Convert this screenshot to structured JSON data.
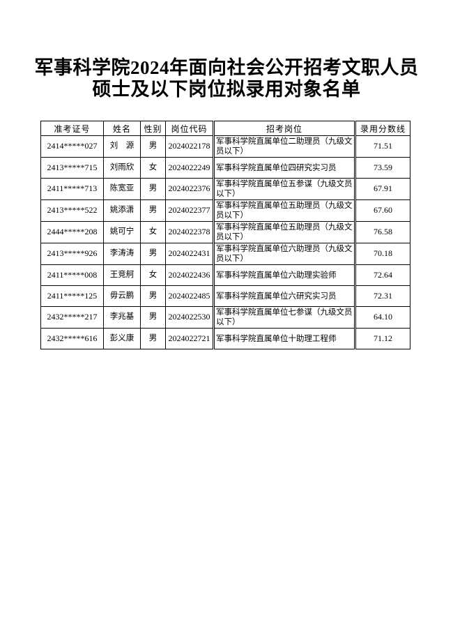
{
  "page": {
    "background_color": "#ffffff",
    "text_color": "#000000",
    "border_color": "#000000"
  },
  "title": {
    "line1": "军事科学院2024年面向社会公开招考文职人员",
    "line2": "硕士及以下岗位拟录用对象名单"
  },
  "table": {
    "headers": [
      "准考证号",
      "姓名",
      "性别",
      "岗位代码",
      "招考岗位",
      "录用分数线"
    ],
    "rows": [
      {
        "exam_id": "2414*****027",
        "name": "刘　源",
        "gender": "男",
        "job_code": "2024022178",
        "position": "军事科学院直属单位二助理员（九级文员以下）",
        "score": "71.51"
      },
      {
        "exam_id": "2413*****715",
        "name": "刘雨欣",
        "gender": "女",
        "job_code": "2024022249",
        "position": "军事科学院直属单位四研究实习员",
        "score": "73.59"
      },
      {
        "exam_id": "2411*****713",
        "name": "陈宽亚",
        "gender": "男",
        "job_code": "2024022376",
        "position": "军事科学院直属单位五参谋（九级文员以下）",
        "score": "67.91"
      },
      {
        "exam_id": "2413*****522",
        "name": "姚添潇",
        "gender": "男",
        "job_code": "2024022377",
        "position": "军事科学院直属单位五助理员（九级文员以下）",
        "score": "67.60"
      },
      {
        "exam_id": "2444*****208",
        "name": "姚可宁",
        "gender": "女",
        "job_code": "2024022378",
        "position": "军事科学院直属单位五助理员（九级文员以下）",
        "score": "76.58"
      },
      {
        "exam_id": "2413*****926",
        "name": "李涛涛",
        "gender": "男",
        "job_code": "2024022431",
        "position": "军事科学院直属单位六助理员（九级文员以下）",
        "score": "70.18"
      },
      {
        "exam_id": "2411*****008",
        "name": "王竞舸",
        "gender": "女",
        "job_code": "2024022436",
        "position": "军事科学院直属单位六助理实验师",
        "score": "72.64"
      },
      {
        "exam_id": "2411*****125",
        "name": "毋云鹏",
        "gender": "男",
        "job_code": "2024022485",
        "position": "军事科学院直属单位六研究实习员",
        "score": "72.31"
      },
      {
        "exam_id": "2432*****217",
        "name": "李兆基",
        "gender": "男",
        "job_code": "2024022530",
        "position": "军事科学院直属单位七参谋（九级文员以下）",
        "score": "64.10"
      },
      {
        "exam_id": "2432*****616",
        "name": "彭义康",
        "gender": "男",
        "job_code": "2024022721",
        "position": "军事科学院直属单位十助理工程师",
        "score": "71.12"
      }
    ]
  }
}
